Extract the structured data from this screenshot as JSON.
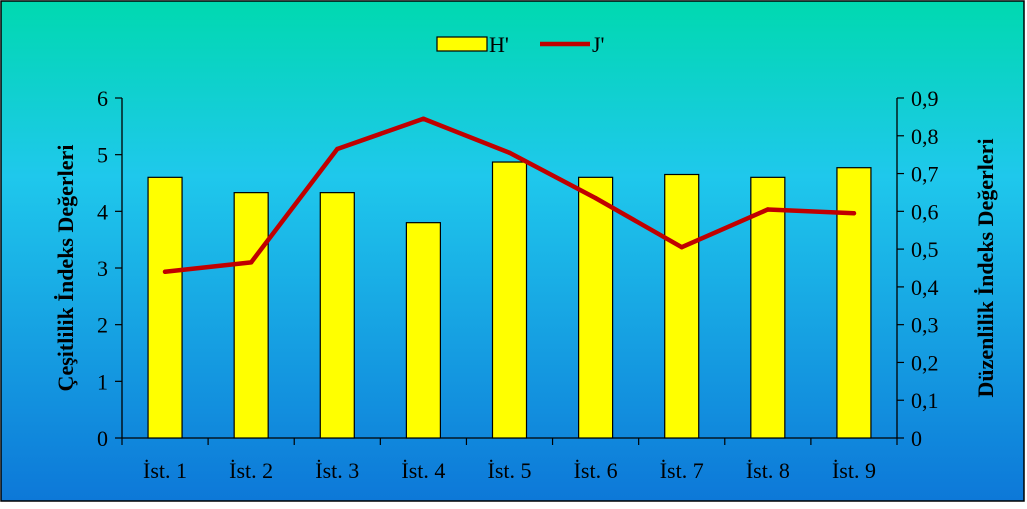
{
  "chart_data": {
    "type": "bar",
    "categories": [
      "İst. 1",
      "İst. 2",
      "İst. 3",
      "İst. 4",
      "İst. 5",
      "İst. 6",
      "İst. 7",
      "İst. 8",
      "İst. 9"
    ],
    "series": [
      {
        "name": "H'",
        "type": "bar",
        "axis": "left",
        "color": "#ffff00",
        "values": [
          4.6,
          4.33,
          4.33,
          3.8,
          4.87,
          4.6,
          4.65,
          4.6,
          4.77
        ]
      },
      {
        "name": "J'",
        "type": "line",
        "axis": "right",
        "color": "#c00000",
        "values": [
          0.44,
          0.465,
          0.765,
          0.845,
          0.755,
          0.635,
          0.505,
          0.605,
          0.595
        ]
      }
    ],
    "ylabel": "Çeşitlilik İndeks Değerleri",
    "ylabel_right": "Düzenlilik İndeks Değerleri",
    "ylim": [
      0,
      6
    ],
    "ylim_right": [
      0,
      0.9
    ],
    "yticks": [
      "0",
      "1",
      "2",
      "3",
      "4",
      "5",
      "6"
    ],
    "yticks_right": [
      "0",
      "0,1",
      "0,2",
      "0,3",
      "0,4",
      "0,5",
      "0,6",
      "0,7",
      "0,8",
      "0,9"
    ],
    "legend_position": "top-center",
    "grid": false,
    "background_gradient": [
      "#00d9b0",
      "#1fc8ec",
      "#0d78d8"
    ]
  }
}
